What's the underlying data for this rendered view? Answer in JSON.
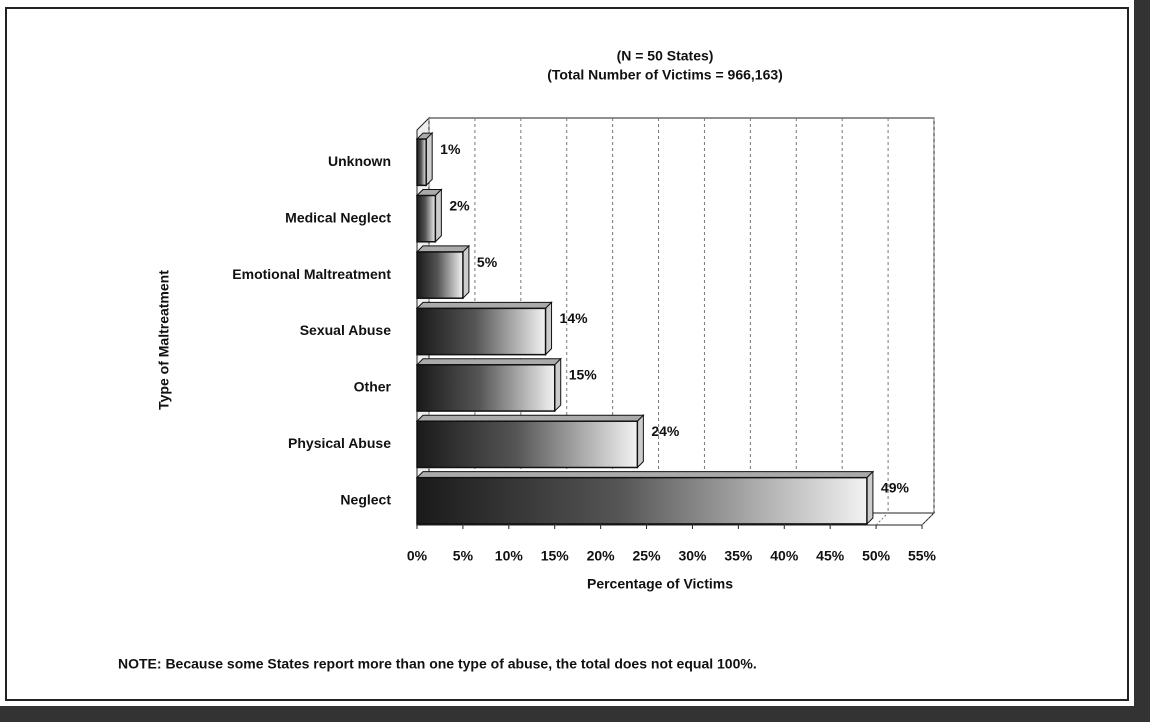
{
  "chart_data": {
    "type": "bar",
    "orientation": "horizontal",
    "title": "(N = 50 States)",
    "subtitle": "(Total Number of Victims = 966,163)",
    "ylabel": "Type of Maltreatment",
    "xlabel": "Percentage of Victims",
    "note": "NOTE:  Because some States report more than one type of abuse, the total does not equal 100%.",
    "categories": [
      "Unknown",
      "Medical Neglect",
      "Emotional Maltreatment",
      "Sexual Abuse",
      "Other",
      "Physical Abuse",
      "Neglect"
    ],
    "values": [
      1,
      2,
      5,
      14,
      15,
      24,
      49
    ],
    "value_labels": [
      "1%",
      "2%",
      "5%",
      "14%",
      "15%",
      "24%",
      "49%"
    ],
    "xlim": [
      0,
      55
    ],
    "xticks": [
      {
        "value": 0,
        "label": "0%"
      },
      {
        "value": 5,
        "label": "5%"
      },
      {
        "value": 10,
        "label": "10%"
      },
      {
        "value": 15,
        "label": "15%"
      },
      {
        "value": 20,
        "label": "20%"
      },
      {
        "value": 25,
        "label": "25%"
      },
      {
        "value": 30,
        "label": "30%"
      },
      {
        "value": 35,
        "label": "35%"
      },
      {
        "value": 40,
        "label": "40%"
      },
      {
        "value": 45,
        "label": "45%"
      },
      {
        "value": 50,
        "label": "50%"
      },
      {
        "value": 55,
        "label": "55%"
      }
    ],
    "grid": true
  }
}
